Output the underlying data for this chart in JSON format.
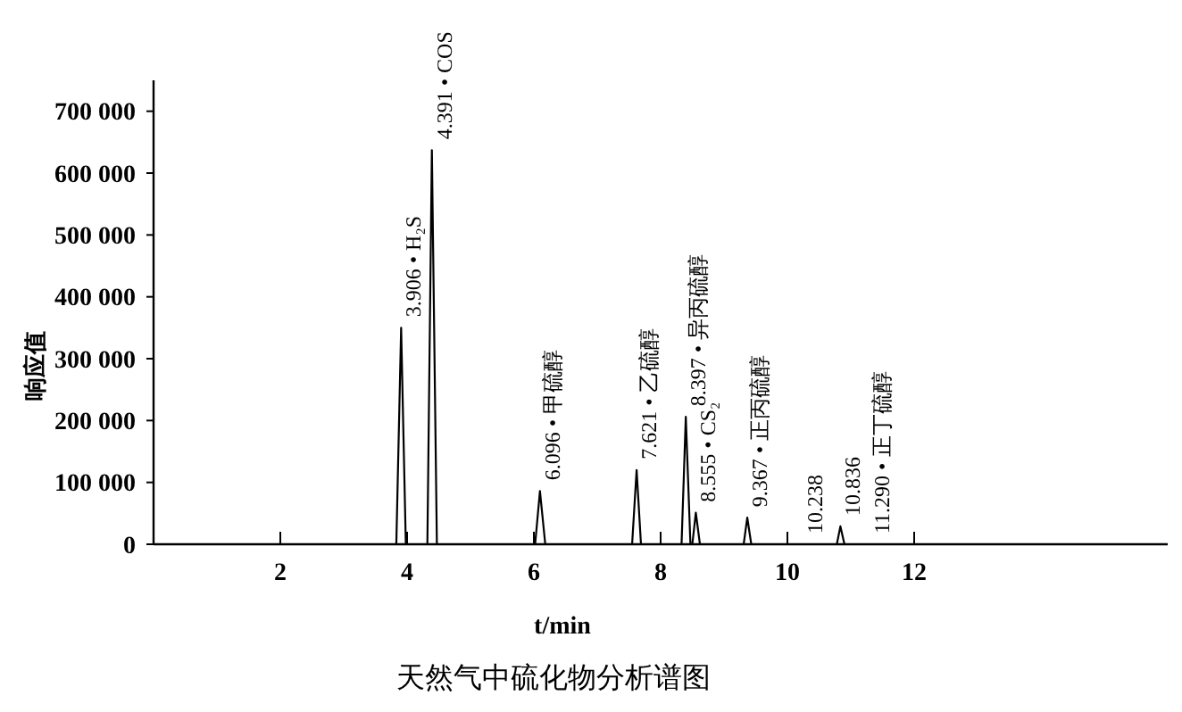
{
  "chart_data": {
    "type": "line",
    "title": "天然气中硫化物分析谱图",
    "xlabel": "t/min",
    "ylabel": "响应值",
    "x": [
      0,
      3.83,
      3.906,
      3.98,
      4.32,
      4.391,
      4.47,
      6.02,
      6.096,
      6.18,
      7.55,
      7.621,
      7.69,
      8.33,
      8.397,
      8.47,
      8.5,
      8.555,
      8.62,
      9.31,
      9.367,
      9.43,
      10.78,
      10.836,
      10.9,
      16
    ],
    "series": [
      {
        "color": "#000000",
        "values": [
          0,
          0,
          350000,
          0,
          0,
          637000,
          0,
          0,
          86000,
          0,
          0,
          120000,
          0,
          0,
          206000,
          0,
          0,
          51000,
          0,
          0,
          43000,
          0,
          0,
          29000,
          0,
          0
        ]
      }
    ],
    "xlim": [
      0,
      16
    ],
    "xticks": [
      2,
      4,
      6,
      8,
      10,
      12
    ],
    "ylim": [
      0,
      750000
    ],
    "yticks": [
      0,
      {
        "value": 100000,
        "label": "100 000"
      },
      {
        "value": 200000,
        "label": "200 000"
      },
      {
        "value": 300000,
        "label": "300 000"
      },
      {
        "value": 400000,
        "label": "400 000"
      },
      {
        "value": 500000,
        "label": "500 000"
      },
      {
        "value": 600000,
        "label": "600 000"
      },
      {
        "value": 700000,
        "label": "700 000"
      }
    ],
    "annotations": [
      {
        "text": "3.906 • H₂S",
        "x": 3.906,
        "y": 350000
      },
      {
        "text": "4.391 • COS",
        "x": 4.391,
        "y": 637000
      },
      {
        "text": "6.096 • 甲硫醇",
        "x": 6.096,
        "y": 86000
      },
      {
        "text": "7.621 • 乙硫醇",
        "x": 7.621,
        "y": 120000
      },
      {
        "text": "8.397 • 异丙硫醇",
        "x": 8.397,
        "y": 206000
      },
      {
        "text": "8.555 • CS₂",
        "x": 8.555,
        "y": 51000
      },
      {
        "text": "9.367 • 正丙硫醇",
        "x": 9.367,
        "y": 43000
      },
      {
        "text": "10.238",
        "x": 10.238,
        "y": 0
      },
      {
        "text": "10.836",
        "x": 10.836,
        "y": 29000
      },
      {
        "text": "11.290 • 正丁硫醇",
        "x": 11.29,
        "y": 0
      }
    ],
    "grid": false,
    "marker": "none",
    "line_style": "solid"
  }
}
